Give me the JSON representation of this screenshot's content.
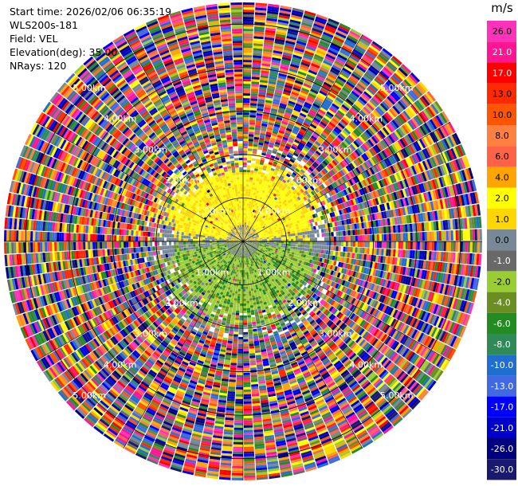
{
  "header": {
    "start_time": "Start time: 2026/02/06 06:35:19",
    "instrument": "WLS200s-181",
    "field": "Field: VEL",
    "elevation": "Elevation(deg): 35.00",
    "nrays": "NRays: 120"
  },
  "colorbar": {
    "unit": "m/s",
    "ticks": [
      "26.0",
      "21.0",
      "17.0",
      "13.0",
      "10.0",
      "8.0",
      "6.0",
      "4.0",
      "2.0",
      "1.0",
      "0.0",
      "-1.0",
      "-2.0",
      "-4.0",
      "-6.0",
      "-8.0",
      "-10.0",
      "-13.0",
      "-17.0",
      "-21.0",
      "-26.0",
      "-30.0"
    ],
    "colors": [
      "#ff33bb",
      "#ff1493",
      "#ff0000",
      "#ff2a00",
      "#ff5500",
      "#ff8040",
      "#ff6347",
      "#ffa500",
      "#ffff00",
      "#ffd700",
      "#778899",
      "#696969",
      "#9acd32",
      "#6b8e23",
      "#228b22",
      "#2e8b57",
      "#1e6fd0",
      "#4169e1",
      "#0000ff",
      "#0000cd",
      "#000080",
      "#191970"
    ]
  },
  "chart_data": {
    "type": "heatmap",
    "projection": "polar PPI",
    "field": "VEL",
    "units": "m/s",
    "nrays": 120,
    "elevation_deg": 35.0,
    "range_ring_labels": [
      "1.00km",
      "2.00km",
      "3.00km",
      "4.00km",
      "5.00km"
    ],
    "range_rings_km": [
      1,
      2,
      3,
      4,
      5
    ],
    "max_range_km": 5.6,
    "data_extent_km": 5.5,
    "velocity_range": [
      -30.0,
      26.0
    ],
    "regions": [
      {
        "from_km": 0.0,
        "to_km": 1.6,
        "description": "coherent; positive (yellow) north half, negative (olive/green) south half"
      },
      {
        "from_km": 1.6,
        "to_km": 2.3,
        "description": "partially coherent with speckle"
      },
      {
        "from_km": 2.3,
        "to_km": 5.5,
        "description": "noise, all velocity colors"
      }
    ]
  }
}
